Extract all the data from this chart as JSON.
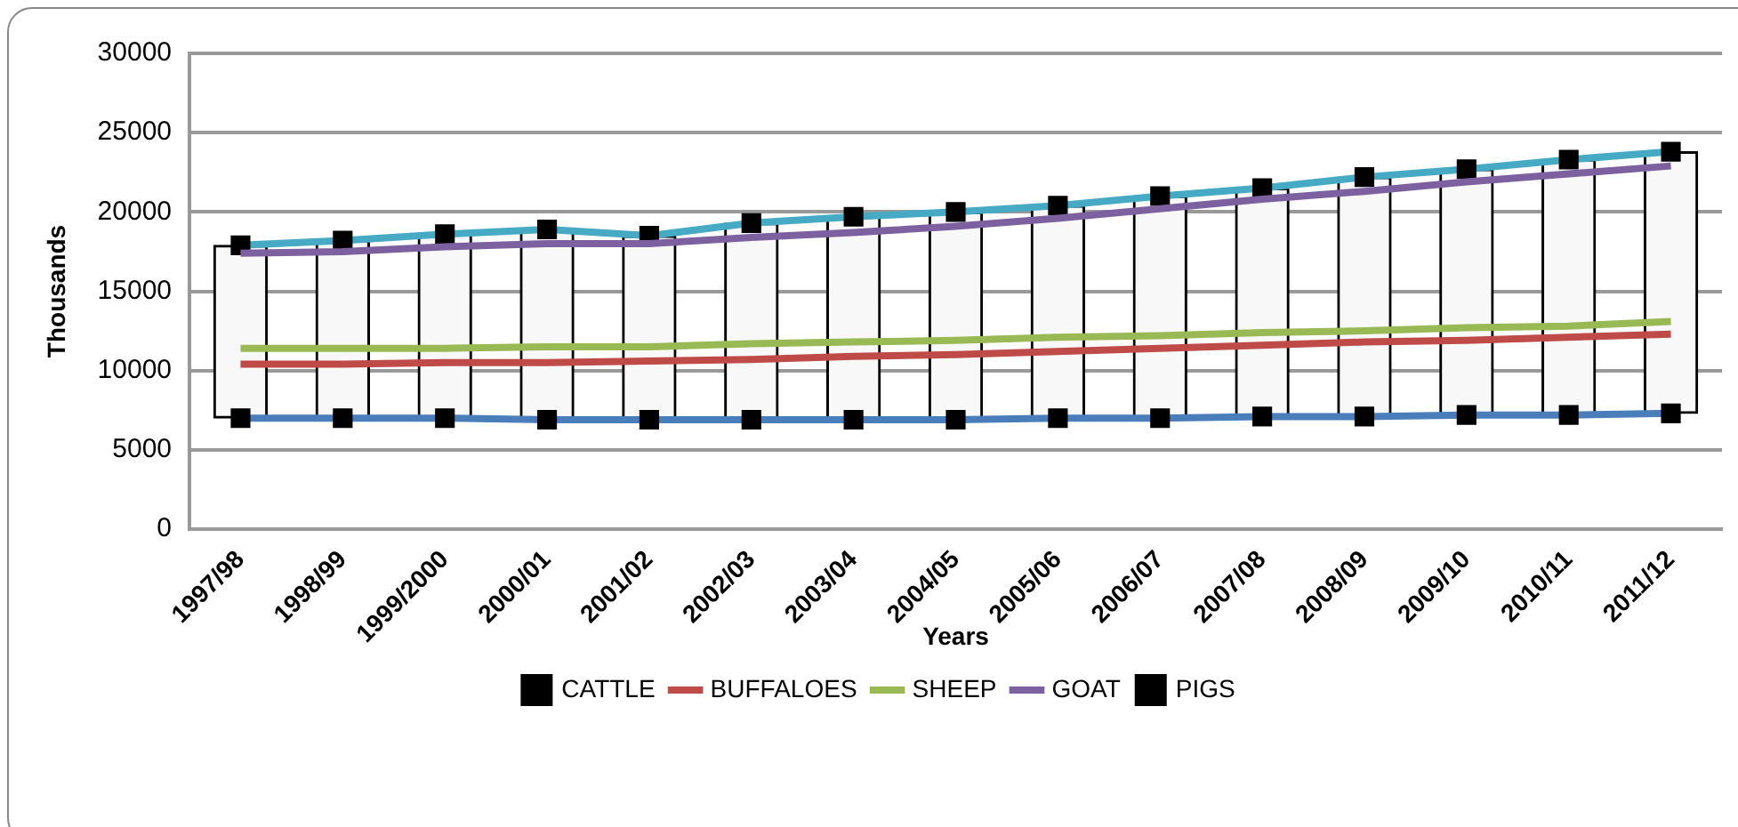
{
  "chart_data": {
    "type": "line",
    "xlabel": "Years",
    "ylabel": "Thousands",
    "categories": [
      "1997/98",
      "1998/99",
      "1999/2000",
      "2000/01",
      "2001/02",
      "2002/03",
      "2003/04",
      "2004/05",
      "2005/06",
      "2006/07",
      "2007/08",
      "2008/09",
      "2009/10",
      "2010/11",
      "2011/12"
    ],
    "series": [
      {
        "name": "CATTLE",
        "color": "#4a7ebb",
        "marker": "square",
        "values": [
          7000,
          7000,
          7000,
          6900,
          6900,
          6900,
          6900,
          6900,
          7000,
          7000,
          7100,
          7100,
          7200,
          7200,
          7300
        ]
      },
      {
        "name": "BUFFALOES",
        "color": "#be4b48",
        "values": [
          10400,
          10400,
          10500,
          10500,
          10600,
          10700,
          10900,
          11000,
          11200,
          11400,
          11600,
          11800,
          11900,
          12100,
          12300
        ]
      },
      {
        "name": "SHEEP",
        "color": "#98b954",
        "values": [
          11400,
          11400,
          11400,
          11500,
          11500,
          11700,
          11800,
          11900,
          12100,
          12200,
          12400,
          12500,
          12700,
          12800,
          13100
        ]
      },
      {
        "name": "GOAT",
        "color": "#7d60a0",
        "values": [
          17400,
          17500,
          17800,
          18000,
          18000,
          18400,
          18700,
          19100,
          19600,
          20200,
          20800,
          21300,
          21900,
          22400,
          22900
        ]
      },
      {
        "name": "PIGS",
        "color": "#46aac5",
        "marker": "square",
        "values": [
          17900,
          18200,
          18600,
          18900,
          18500,
          19300,
          19700,
          20000,
          20400,
          21000,
          21500,
          22200,
          22700,
          23300,
          23800
        ]
      },
      {
        "type": "bar",
        "color": "#f8f8f8",
        "base": [
          7000,
          7000,
          7000,
          6900,
          6900,
          6900,
          6900,
          6900,
          7000,
          7000,
          7100,
          7100,
          7200,
          7200,
          7300
        ],
        "values": [
          10900,
          11200,
          11600,
          12000,
          11600,
          12400,
          12800,
          13100,
          13400,
          14000,
          14400,
          15100,
          15500,
          16100,
          16500
        ]
      }
    ],
    "ylim": [
      0,
      30000
    ],
    "yticks": [
      0,
      5000,
      10000,
      15000,
      20000,
      25000,
      30000
    ],
    "grid": "y",
    "legend": "bottom"
  }
}
